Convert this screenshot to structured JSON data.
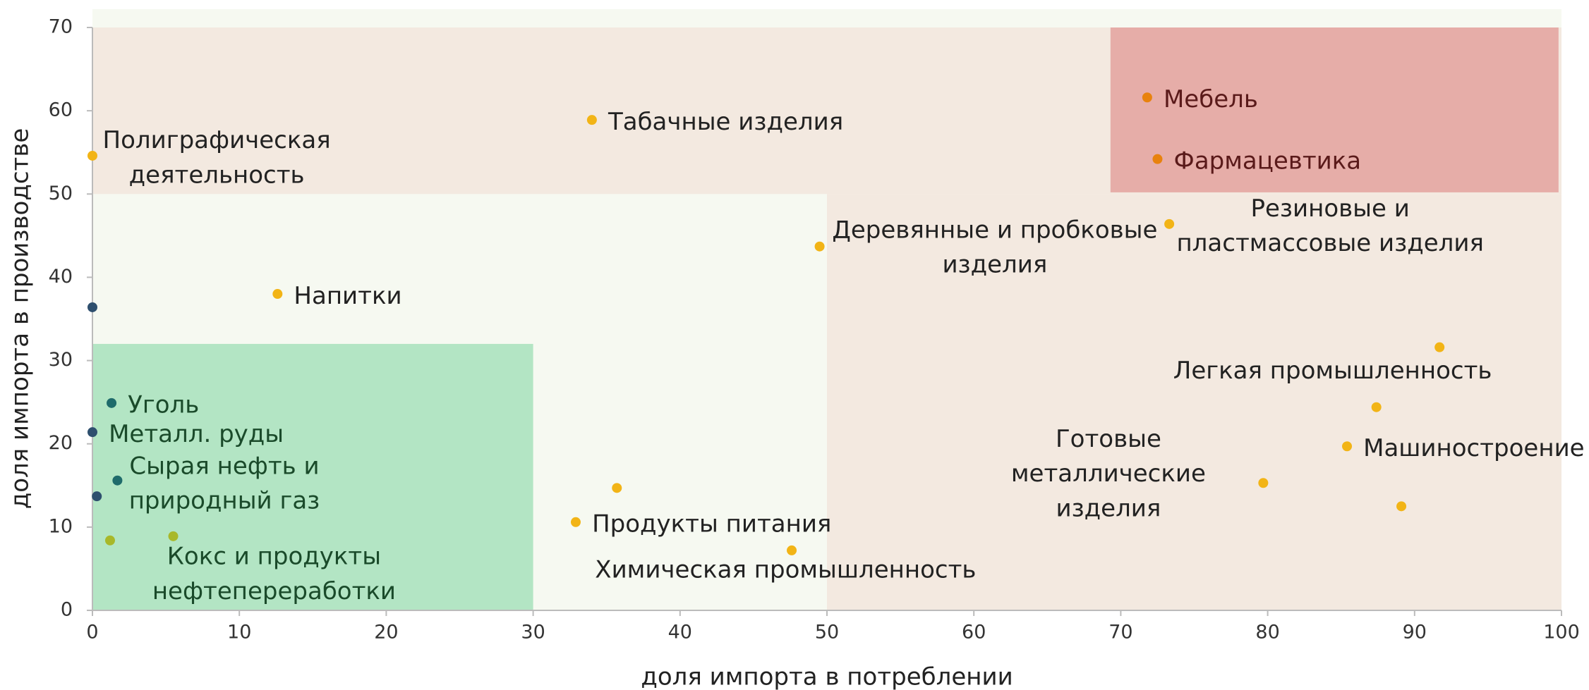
{
  "chart_data": {
    "type": "scatter",
    "xlabel": "доля импорта в потреблении",
    "ylabel": "доля импорта в производстве",
    "xlim": [
      0,
      100
    ],
    "ylim": [
      0,
      70
    ],
    "xticks": [
      0,
      10,
      20,
      30,
      40,
      50,
      60,
      70,
      80,
      90,
      100
    ],
    "yticks": [
      0,
      10,
      20,
      30,
      40,
      50,
      60,
      70
    ],
    "background": "#f6f9f1",
    "regions": [
      {
        "x": [
          0,
          100
        ],
        "y": [
          50,
          70
        ],
        "color": "#f3e9e0",
        "text_color": "#222222"
      },
      {
        "x": [
          50,
          100
        ],
        "y": [
          0,
          50
        ],
        "color": "#f3e9e0",
        "text_color": "#222222"
      },
      {
        "x": [
          69.3,
          99.8
        ],
        "y": [
          50.2,
          70
        ],
        "color": "#e6ada8",
        "text_color": "#5a1a1a"
      },
      {
        "x": [
          0,
          30
        ],
        "y": [
          0,
          32
        ],
        "color": "#b3e5c4",
        "text_color": "#1a4a2a"
      }
    ],
    "points": [
      {
        "x": 0,
        "y": 54.6,
        "color": "#f2b416",
        "label": [
          "Полиграфическая",
          "деятельность"
        ]
      },
      {
        "x": 34.0,
        "y": 58.9,
        "color": "#f2b416",
        "label": [
          "Табачные изделия"
        ]
      },
      {
        "x": 71.8,
        "y": 61.6,
        "color": "#e8820e",
        "label": [
          "Мебель"
        ]
      },
      {
        "x": 72.5,
        "y": 54.2,
        "color": "#e8820e",
        "label": [
          "Фармацевтика"
        ]
      },
      {
        "x": 49.5,
        "y": 43.7,
        "color": "#f2b416",
        "label": [
          "Деревянные и пробковые",
          "изделия"
        ]
      },
      {
        "x": 73.3,
        "y": 46.4,
        "color": "#f2b416",
        "label": [
          "Резиновые и",
          "пластмассовые изделия"
        ]
      },
      {
        "x": 12.6,
        "y": 38.0,
        "color": "#f2b416",
        "label": [
          "Напитки"
        ]
      },
      {
        "x": 0,
        "y": 36.4,
        "color": "#2e4f6e"
      },
      {
        "x": 91.7,
        "y": 31.6,
        "color": "#f2b416",
        "label": [
          "Легкая промышленность"
        ]
      },
      {
        "x": 87.4,
        "y": 24.4,
        "color": "#f2b416"
      },
      {
        "x": 1.3,
        "y": 24.9,
        "color": "#1f6b6b",
        "label": [
          "Уголь"
        ]
      },
      {
        "x": 0,
        "y": 21.4,
        "color": "#2e4f6e",
        "label": [
          "Металл. руды"
        ]
      },
      {
        "x": 1.7,
        "y": 15.6,
        "color": "#1f6b6b",
        "label": [
          "Сырая нефть и",
          "природный газ"
        ]
      },
      {
        "x": 0.3,
        "y": 13.7,
        "color": "#2e4f6e"
      },
      {
        "x": 1.2,
        "y": 8.4,
        "color": "#a8b82a"
      },
      {
        "x": 5.5,
        "y": 8.9,
        "color": "#a8b82a",
        "label": [
          "Кокс и продукты",
          "нефтепереработки"
        ]
      },
      {
        "x": 35.7,
        "y": 14.7,
        "color": "#f2b416"
      },
      {
        "x": 32.9,
        "y": 10.6,
        "color": "#f2b416",
        "label": [
          "Продукты питания"
        ]
      },
      {
        "x": 47.6,
        "y": 7.2,
        "color": "#f2b416",
        "label": [
          "Химическая промышленность"
        ]
      },
      {
        "x": 85.4,
        "y": 19.7,
        "color": "#f2b416",
        "label": [
          "Машиностроение"
        ]
      },
      {
        "x": 79.7,
        "y": 15.3,
        "color": "#f2b416",
        "label": [
          "Готовые",
          "металлические",
          "изделия"
        ]
      },
      {
        "x": 89.1,
        "y": 12.5,
        "color": "#f2b416"
      }
    ]
  }
}
